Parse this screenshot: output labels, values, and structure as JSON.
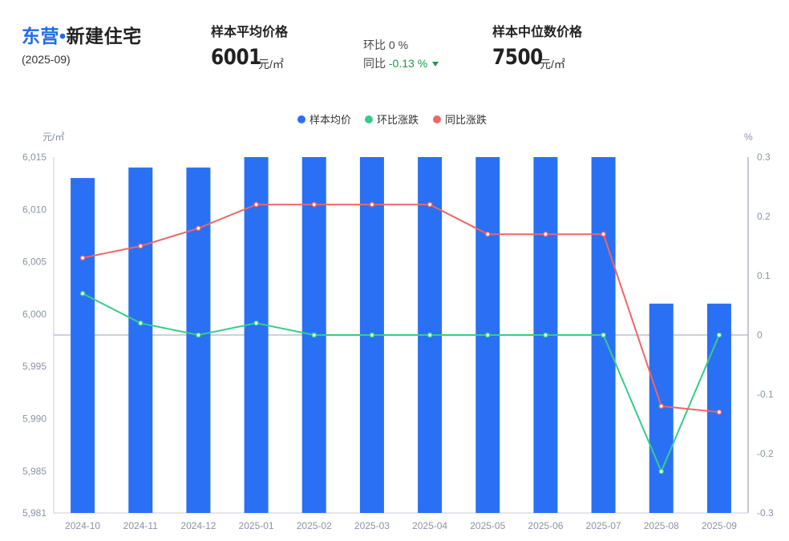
{
  "header": {
    "city": "东营",
    "separator": "•",
    "subtitle": "新建住宅",
    "date": "(2025-09)"
  },
  "stats": {
    "avg_label": "样本平均价格",
    "avg_value": "6001",
    "avg_unit": "元/㎡",
    "mom_label": "环比",
    "mom_value": "0 %",
    "yoy_label": "同比",
    "yoy_value": "-0.13 %",
    "median_label": "样本中位数价格",
    "median_value": "7500",
    "median_unit": "元/㎡"
  },
  "colors": {
    "bar": "#2970f5",
    "mom": "#36cc8a",
    "yoy": "#ee6666",
    "accent": "#1f6be8",
    "down": "#1a9a4a"
  },
  "chart_data": {
    "type": "bar",
    "categories": [
      "2024-10",
      "2024-11",
      "2024-12",
      "2025-01",
      "2025-02",
      "2025-03",
      "2025-04",
      "2025-05",
      "2025-06",
      "2025-07",
      "2025-08",
      "2025-09"
    ],
    "left_axis": {
      "unit": "元/㎡",
      "min": 5981,
      "max": 6015,
      "ticks": [
        5981,
        5985,
        5990,
        5995,
        6000,
        6005,
        6010,
        6015
      ],
      "tick_labels": [
        "5,981",
        "5,985",
        "5,990",
        "5,995",
        "6,000",
        "6,005",
        "6,010",
        "6,015"
      ]
    },
    "right_axis": {
      "unit": "%",
      "min": -0.3,
      "max": 0.3,
      "ticks": [
        -0.3,
        -0.2,
        -0.1,
        0,
        0.1,
        0.2,
        0.3
      ],
      "tick_labels": [
        "-0.3",
        "-0.2",
        "-0.1",
        "0",
        "0.1",
        "0.2",
        "0.3"
      ]
    },
    "legend": {
      "placement": "top-center"
    },
    "series": [
      {
        "name": "样本均价",
        "type": "bar",
        "axis": "left",
        "values": [
          6013,
          6014,
          6014,
          6015,
          6015,
          6015,
          6015,
          6015,
          6015,
          6015,
          6001,
          6001
        ]
      },
      {
        "name": "环比涨跌",
        "type": "line",
        "axis": "right",
        "values": [
          0.07,
          0.02,
          0,
          0.02,
          0,
          0,
          0,
          0,
          0,
          0,
          -0.23,
          0
        ]
      },
      {
        "name": "同比涨跌",
        "type": "line",
        "axis": "right",
        "values": [
          0.13,
          0.15,
          0.18,
          0.22,
          0.22,
          0.22,
          0.22,
          0.17,
          0.17,
          0.17,
          -0.12,
          -0.13
        ]
      }
    ]
  }
}
